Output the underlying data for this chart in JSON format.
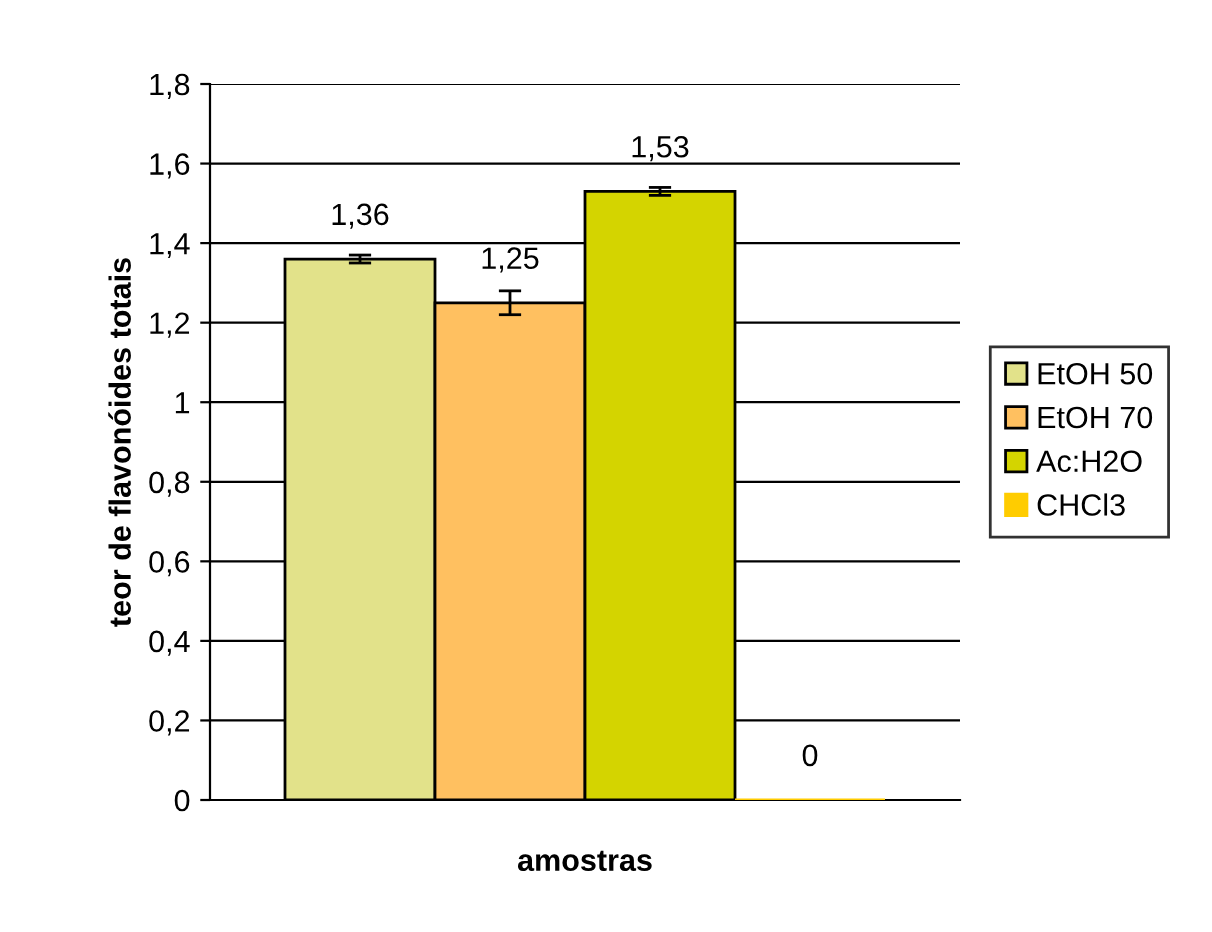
{
  "chart_data": {
    "type": "bar",
    "xlabel": "amostras",
    "ylabel": "teor de flavonóides totais",
    "categories": [
      null
    ],
    "series": [
      {
        "name": "EtOH 50",
        "color": "#e2e28a",
        "values": [
          1.36
        ],
        "errors": [
          0.01
        ],
        "value_labels": [
          "1,36"
        ]
      },
      {
        "name": "EtOH 70",
        "color": "#ffc060",
        "values": [
          1.25
        ],
        "errors": [
          0.03
        ],
        "value_labels": [
          "1,25"
        ]
      },
      {
        "name": "Ac:H2O",
        "color": "#d4d400",
        "values": [
          1.53
        ],
        "errors": [
          0.01
        ],
        "value_labels": [
          "1,53"
        ]
      },
      {
        "name": "CHCl3",
        "color": "#ffcc00",
        "values": [
          0
        ],
        "value_labels": [
          "0"
        ]
      }
    ],
    "ylim": [
      0,
      1.8
    ],
    "yticks": [
      0,
      {
        "value": 0.2,
        "label": "0,2"
      },
      {
        "value": 0.4,
        "label": "0,4"
      },
      {
        "value": 0.6,
        "label": "0,6"
      },
      {
        "value": 0.8,
        "label": "0,8"
      },
      1,
      {
        "value": 1.2,
        "label": "1,2"
      },
      {
        "value": 1.4,
        "label": "1,4"
      },
      {
        "value": 1.6,
        "label": "1,6"
      },
      {
        "value": 1.8,
        "label": "1,8"
      }
    ],
    "grid": "y",
    "legend": "right"
  }
}
